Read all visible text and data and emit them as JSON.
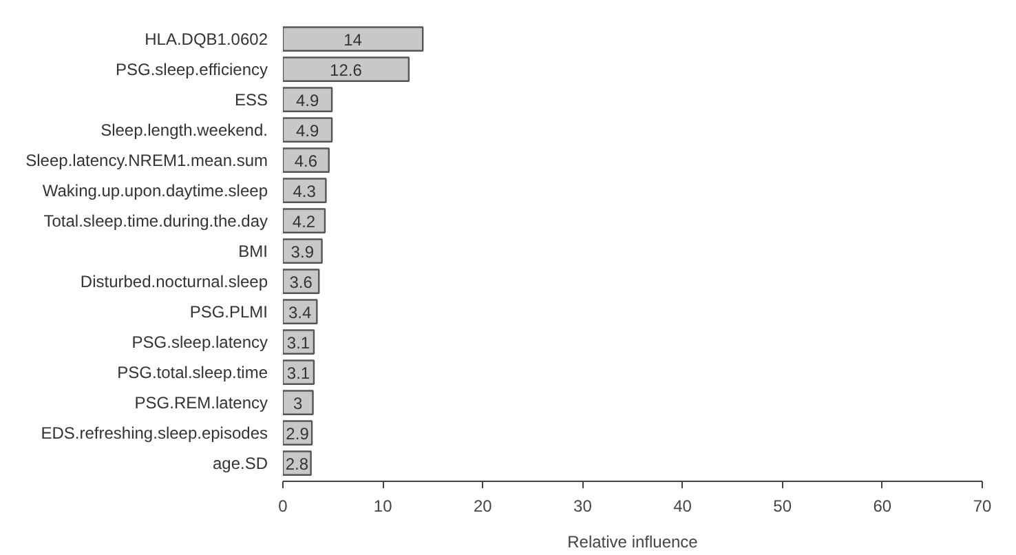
{
  "chart_data": {
    "type": "bar",
    "orientation": "horizontal",
    "xlabel": "Relative influence",
    "categories": [
      "HLA.DQB1.0602",
      "PSG.sleep.efficiency",
      "ESS",
      "Sleep.length.weekend.",
      "Sleep.latency.NREM1.mean.sum",
      "Waking.up.upon.daytime.sleep",
      "Total.sleep.time.during.the.day",
      "BMI",
      "Disturbed.nocturnal.sleep",
      "PSG.PLMI",
      "PSG.sleep.latency",
      "PSG.total.sleep.time",
      "PSG.REM.latency",
      "EDS.refreshing.sleep.episodes",
      "age.SD"
    ],
    "values": [
      14,
      12.6,
      4.9,
      4.9,
      4.6,
      4.3,
      4.2,
      3.9,
      3.6,
      3.4,
      3.1,
      3.1,
      3,
      2.9,
      2.8
    ],
    "color": "#c8c8c8",
    "data_labels": true,
    "xlim": [
      0,
      70
    ],
    "xticks": [
      0,
      10,
      20,
      30,
      40,
      50,
      60,
      70
    ],
    "grid": false
  }
}
